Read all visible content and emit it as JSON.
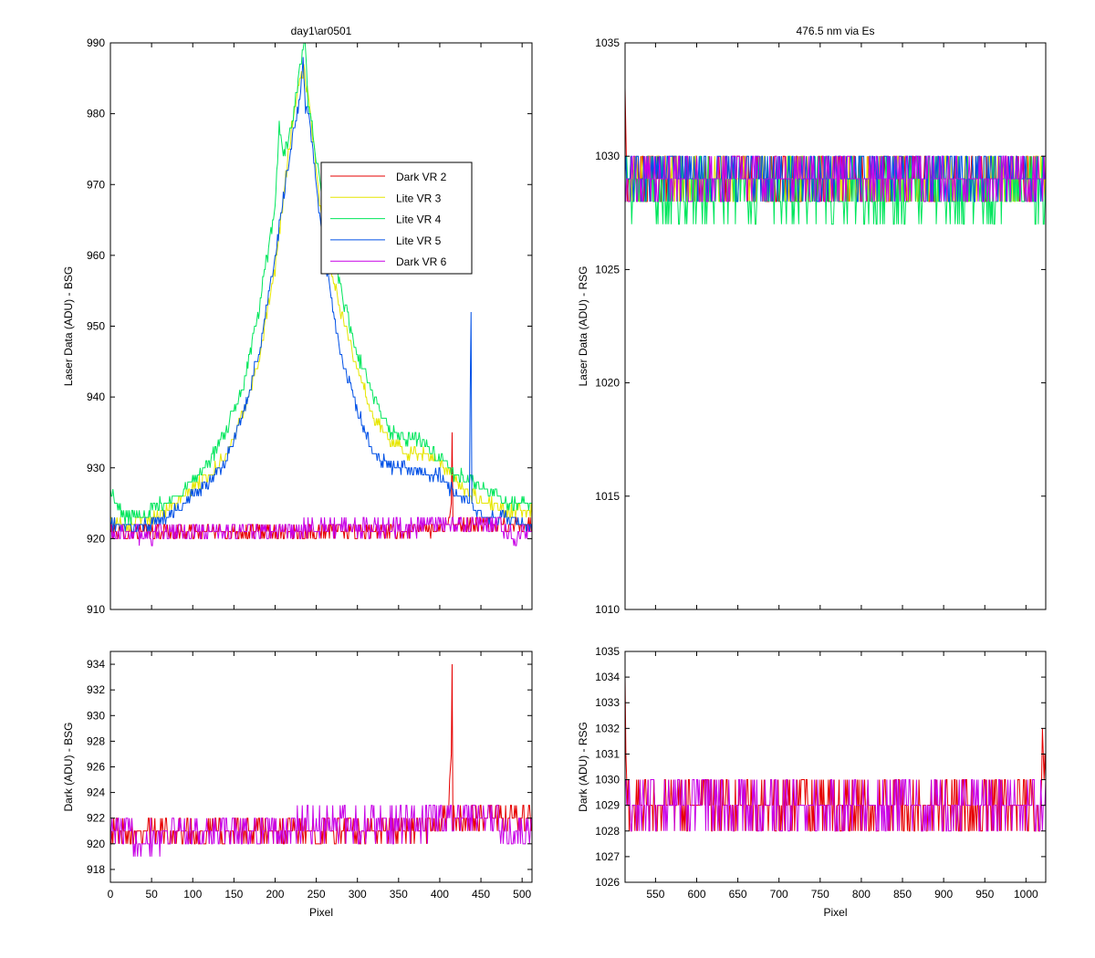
{
  "figure_title": "day1\\ar0501",
  "colors": {
    "dark_vr2": "#e60000",
    "lite_vr3": "#e6e600",
    "lite_vr4": "#00e65c",
    "lite_vr5": "#0050e6",
    "dark_vr6": "#c800e6"
  },
  "chart_data": [
    {
      "id": "panel_top_left",
      "type": "line",
      "title": "day1\\ar0501",
      "xlabel": "",
      "ylabel": "Laser Data (ADU) - BSG",
      "xlim": [
        0,
        512
      ],
      "ylim": [
        910,
        990
      ],
      "xticks": [
        0,
        50,
        100,
        150,
        200,
        250,
        300,
        350,
        400,
        450,
        500
      ],
      "show_xticklabels": false,
      "yticks": [
        910,
        920,
        930,
        940,
        950,
        960,
        970,
        980,
        990
      ],
      "grid": false,
      "legend": {
        "position": "upper-center",
        "entries": [
          "Dark VR 2",
          "Lite VR 3",
          "Lite VR 4",
          "Lite VR 5",
          "Dark VR 6"
        ]
      },
      "series": [
        {
          "name": "Dark VR 2",
          "color": "#e60000",
          "x": [
            0,
            40,
            80,
            120,
            160,
            200,
            240,
            280,
            320,
            360,
            400,
            410,
            414,
            415,
            416,
            418,
            440,
            480,
            512
          ],
          "y": [
            921,
            921,
            921,
            921,
            921,
            921,
            921,
            921,
            921,
            921,
            921.5,
            922,
            926,
            934,
            922,
            921.5,
            922,
            922,
            922
          ],
          "noise": 1.0
        },
        {
          "name": "Lite VR 3",
          "color": "#e6e600",
          "x": [
            0,
            20,
            50,
            80,
            100,
            120,
            140,
            160,
            180,
            200,
            210,
            220,
            230,
            235,
            240,
            245,
            250,
            260,
            280,
            300,
            320,
            340,
            360,
            380,
            400,
            420,
            440,
            460,
            480,
            500,
            512
          ],
          "y": [
            922.5,
            922,
            923,
            925,
            927,
            929,
            932,
            937,
            945,
            958,
            968,
            978,
            985,
            986,
            983,
            978,
            972,
            962,
            952,
            944,
            937,
            934,
            932,
            932,
            931,
            928,
            926,
            925,
            924,
            924,
            924
          ],
          "noise": 0.8
        },
        {
          "name": "Lite VR 4",
          "color": "#00e65c",
          "x": [
            0,
            10,
            20,
            50,
            80,
            100,
            120,
            140,
            160,
            180,
            200,
            205,
            210,
            220,
            230,
            236,
            240,
            245,
            250,
            260,
            280,
            300,
            320,
            340,
            360,
            380,
            400,
            420,
            440,
            460,
            480,
            500,
            512
          ],
          "y": [
            927,
            924,
            923,
            924,
            926,
            928,
            931,
            935,
            941,
            952,
            967,
            978,
            974,
            978,
            986,
            991,
            982,
            978,
            974,
            965,
            955,
            946,
            940,
            935,
            934,
            934,
            931,
            929,
            928,
            927,
            925,
            925,
            925
          ],
          "noise": 0.9
        },
        {
          "name": "Lite VR 5",
          "color": "#0050e6",
          "x": [
            0,
            20,
            50,
            80,
            100,
            120,
            140,
            160,
            180,
            200,
            210,
            220,
            230,
            234,
            237,
            240,
            245,
            250,
            260,
            280,
            300,
            320,
            340,
            360,
            380,
            400,
            420,
            436,
            437,
            438,
            439,
            440,
            460,
            480,
            500,
            512
          ],
          "y": [
            922,
            921.5,
            922,
            924,
            926,
            928,
            931,
            937,
            946,
            960,
            968,
            976,
            982,
            988,
            981,
            980,
            976,
            970,
            960,
            946,
            938,
            932,
            930,
            930,
            929,
            929,
            926,
            925,
            941,
            953,
            925,
            924,
            923,
            923,
            922,
            922
          ],
          "noise": 0.8
        },
        {
          "name": "Dark VR 6",
          "color": "#c800e6",
          "x": [
            0,
            40,
            80,
            120,
            160,
            200,
            240,
            280,
            320,
            360,
            400,
            440,
            470,
            480,
            490,
            500,
            512
          ],
          "y": [
            921,
            920.5,
            921,
            921,
            921,
            921,
            921.5,
            921.5,
            921.5,
            921.5,
            922,
            922,
            922,
            921,
            920,
            921,
            921
          ],
          "noise": 1.3
        }
      ]
    },
    {
      "id": "panel_bottom_left",
      "type": "line",
      "title": "",
      "xlabel": "Pixel",
      "ylabel": "Dark (ADU) - BSG",
      "xlim": [
        0,
        512
      ],
      "ylim": [
        917,
        935
      ],
      "xticks": [
        0,
        50,
        100,
        150,
        200,
        250,
        300,
        350,
        400,
        450,
        500
      ],
      "show_xticklabels": true,
      "yticks": [
        918,
        920,
        922,
        924,
        926,
        928,
        930,
        932,
        934
      ],
      "grid": false,
      "series": [
        {
          "name": "Dark VR 2",
          "color": "#e60000",
          "x": [
            0,
            40,
            80,
            120,
            160,
            200,
            240,
            280,
            320,
            360,
            400,
            410,
            414,
            415,
            416,
            418,
            440,
            480,
            512
          ],
          "y": [
            921,
            921,
            921,
            921,
            921,
            921,
            921,
            921,
            921,
            921,
            921.5,
            922,
            928,
            934,
            922,
            921.5,
            922,
            922,
            922
          ],
          "noise": 1.0
        },
        {
          "name": "Dark VR 6",
          "color": "#c800e6",
          "x": [
            0,
            40,
            80,
            120,
            160,
            200,
            240,
            280,
            320,
            360,
            400,
            440,
            470,
            480,
            490,
            500,
            512
          ],
          "y": [
            921,
            920.5,
            921,
            921,
            921,
            921,
            921.5,
            921.5,
            921.5,
            921.5,
            922,
            922,
            922,
            921,
            920,
            921,
            921
          ],
          "noise": 1.4
        }
      ]
    },
    {
      "id": "panel_top_right",
      "type": "line",
      "title": "476.5 nm via Es",
      "xlabel": "",
      "ylabel": "Laser Data (ADU) - RSG",
      "xlim": [
        513,
        1024
      ],
      "ylim": [
        1010,
        1035
      ],
      "xticks": [
        550,
        600,
        650,
        700,
        750,
        800,
        850,
        900,
        950,
        1000
      ],
      "show_xticklabels": false,
      "yticks": [
        1010,
        1015,
        1020,
        1025,
        1030,
        1035
      ],
      "grid": false,
      "series": [
        {
          "name": "Dark VR 2",
          "color": "#e60000",
          "x": [
            513,
            515,
            520,
            600,
            700,
            800,
            900,
            1000,
            1024
          ],
          "y": [
            1033,
            1029,
            1029,
            1029,
            1029,
            1029,
            1029,
            1029,
            1029
          ],
          "noise": 1.0
        },
        {
          "name": "Lite VR 3",
          "color": "#e6e600",
          "x": [
            513,
            600,
            700,
            800,
            900,
            1000,
            1024
          ],
          "y": [
            1029,
            1029,
            1029,
            1029,
            1029,
            1029,
            1029
          ],
          "noise": 1.0
        },
        {
          "name": "Lite VR 4",
          "color": "#00e65c",
          "x": [
            513,
            600,
            700,
            800,
            900,
            1000,
            1024
          ],
          "y": [
            1028.5,
            1028.5,
            1028.5,
            1028.5,
            1028.5,
            1028.5,
            1028.5
          ],
          "noise": 1.4
        },
        {
          "name": "Lite VR 5",
          "color": "#0050e6",
          "x": [
            513,
            600,
            700,
            800,
            900,
            1000,
            1024
          ],
          "y": [
            1029.3,
            1029.3,
            1029.3,
            1029.3,
            1029.3,
            1029.3,
            1029.3
          ],
          "noise": 1.1
        },
        {
          "name": "Dark VR 6",
          "color": "#c800e6",
          "x": [
            513,
            600,
            700,
            800,
            900,
            1000,
            1024
          ],
          "y": [
            1029,
            1029,
            1029,
            1029,
            1029,
            1029,
            1029
          ],
          "noise": 1.0
        }
      ]
    },
    {
      "id": "panel_bottom_right",
      "type": "line",
      "title": "",
      "xlabel": "Pixel",
      "ylabel": "Dark (ADU) - RSG",
      "xlim": [
        513,
        1024
      ],
      "ylim": [
        1026,
        1035
      ],
      "xticks": [
        550,
        600,
        650,
        700,
        750,
        800,
        850,
        900,
        950,
        1000
      ],
      "show_xticklabels": true,
      "yticks": [
        1026,
        1027,
        1028,
        1029,
        1030,
        1031,
        1032,
        1033,
        1034,
        1035
      ],
      "grid": false,
      "series": [
        {
          "name": "Dark VR 2",
          "color": "#e60000",
          "x": [
            513,
            515,
            520,
            600,
            700,
            800,
            900,
            1000,
            1018,
            1020,
            1024
          ],
          "y": [
            1033,
            1029.5,
            1029,
            1029,
            1029,
            1029,
            1029,
            1029,
            1029,
            1031,
            1031
          ],
          "noise": 1.0
        },
        {
          "name": "Dark VR 6",
          "color": "#c800e6",
          "x": [
            513,
            600,
            700,
            800,
            900,
            1000,
            1024
          ],
          "y": [
            1029,
            1029,
            1029,
            1029,
            1029,
            1029,
            1029
          ],
          "noise": 1.0
        }
      ]
    }
  ]
}
